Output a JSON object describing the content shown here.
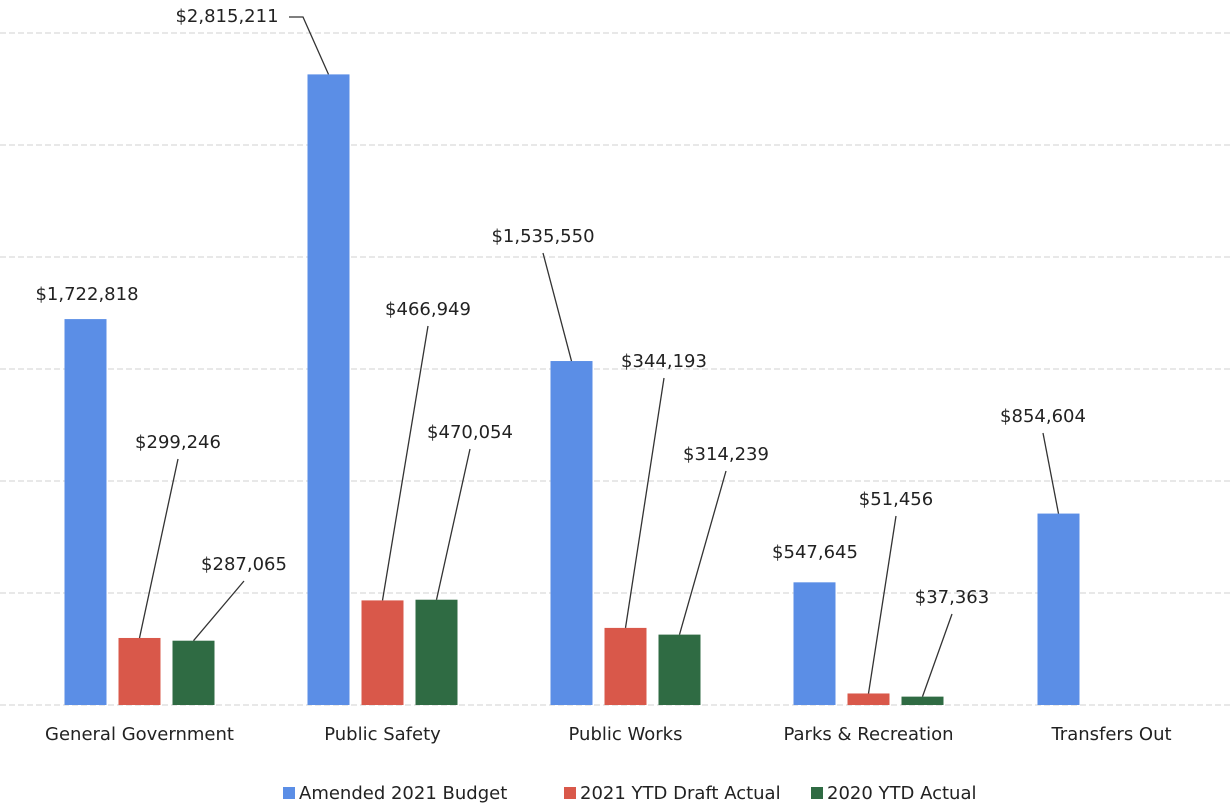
{
  "chart_data": {
    "type": "bar",
    "categories": [
      "General Government",
      "Public Safety",
      "Public Works",
      "Parks & Recreation",
      "Transfers Out"
    ],
    "series": [
      {
        "name": "Amended 2021 Budget",
        "color": "#5b8ee6",
        "values": [
          1722818,
          2815211,
          1535550,
          547645,
          854604
        ],
        "value_labels": [
          "$1,722,818",
          "$2,815,211",
          "$1,535,550",
          "$547,645",
          "$854,604"
        ]
      },
      {
        "name": "2021 YTD Draft Actual",
        "color": "#d9584a",
        "values": [
          299246,
          466949,
          344193,
          51456,
          null
        ],
        "value_labels": [
          "$299,246",
          "$466,949",
          "$344,193",
          "$51,456",
          null
        ]
      },
      {
        "name": "2020 YTD Actual",
        "color": "#2f6b43",
        "values": [
          287065,
          470054,
          314239,
          37363,
          null
        ],
        "value_labels": [
          "$287,065",
          "$470,054",
          "$314,239",
          "$37,363",
          null
        ]
      }
    ],
    "ylim": [
      0,
      3000000
    ],
    "yticks": [
      0,
      500000,
      1000000,
      1500000,
      2000000,
      2500000,
      3000000
    ],
    "grid": true,
    "legend": "bottom"
  }
}
